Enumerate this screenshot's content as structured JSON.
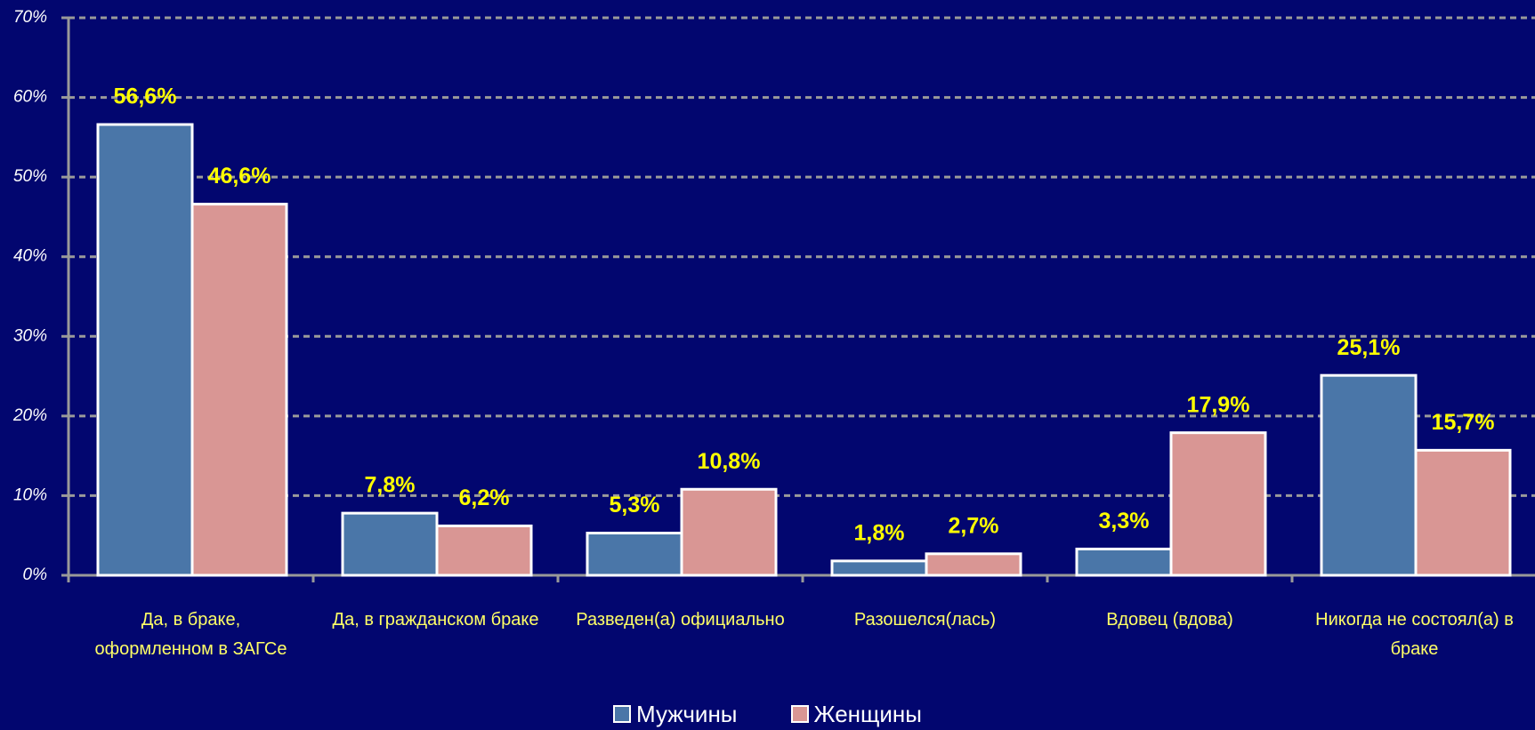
{
  "chart_data": {
    "type": "bar",
    "categories": [
      "Да, в браке, оформленном в ЗАГСе",
      "Да, в гражданском браке",
      "Разведен(а) официально",
      "Разошелся(лась)",
      "Вдовец (вдова)",
      "Никогда не состоял(а) в браке"
    ],
    "series": [
      {
        "name": "Мужчины",
        "color": "#4a76a8",
        "values": [
          56.6,
          7.8,
          5.3,
          1.8,
          3.3,
          25.1
        ],
        "value_labels": [
          "56,6%",
          "7,8%",
          "5,3%",
          "1,8%",
          "3,3%",
          "25,1%"
        ]
      },
      {
        "name": "Женщины",
        "color": "#d99694",
        "values": [
          46.6,
          6.2,
          10.8,
          2.7,
          17.9,
          15.7
        ],
        "value_labels": [
          "46,6%",
          "6,2%",
          "10,8%",
          "2,7%",
          "17,9%",
          "15,7%"
        ]
      }
    ],
    "ylim": [
      0,
      70
    ],
    "yticks": [
      {
        "value": 0,
        "label": "0%"
      },
      {
        "value": 10,
        "label": "10%"
      },
      {
        "value": 20,
        "label": "20%"
      },
      {
        "value": 30,
        "label": "30%"
      },
      {
        "value": 40,
        "label": "40%"
      },
      {
        "value": 50,
        "label": "50%"
      },
      {
        "value": 60,
        "label": "60%"
      },
      {
        "value": 70,
        "label": "70%"
      }
    ],
    "grid": true
  }
}
